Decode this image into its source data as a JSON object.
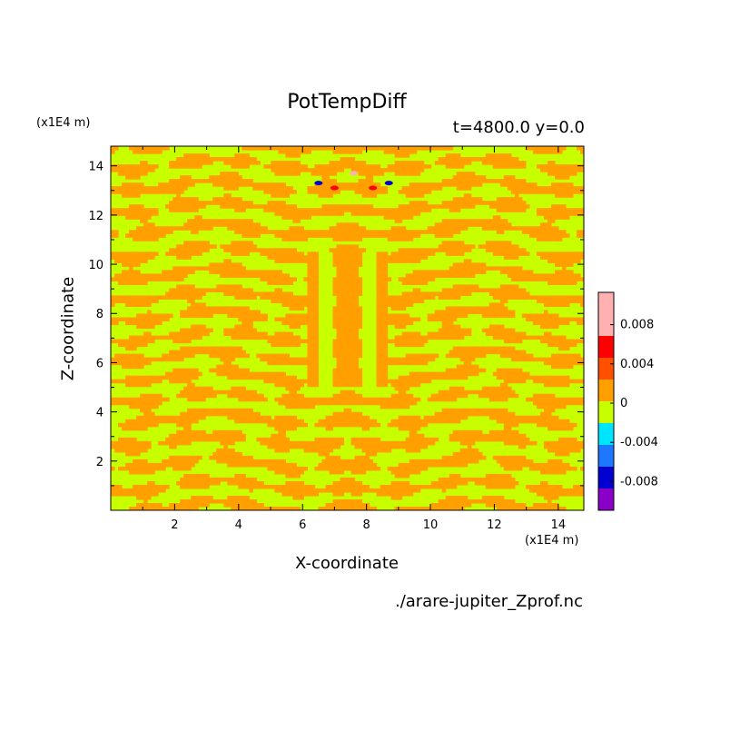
{
  "chart_data": {
    "type": "heatmap",
    "title": "PotTempDiff",
    "subtitle": "t=4800.0 y=0.0",
    "xlabel": "X-coordinate",
    "ylabel": "Z-coordinate",
    "x_unit": "(x1E4 m)",
    "z_unit": "(x1E4 m)",
    "xlim": [
      0,
      14.8
    ],
    "ylim": [
      0,
      14.8
    ],
    "x_ticks": [
      2,
      4,
      6,
      8,
      10,
      12,
      14
    ],
    "y_ticks": [
      2,
      4,
      6,
      8,
      10,
      12,
      14
    ],
    "x_tick_labels": [
      "2",
      "4",
      "6",
      "8",
      "10",
      "12",
      "14"
    ],
    "y_tick_labels": [
      "2",
      "4",
      "6",
      "8",
      "10",
      "12",
      "14"
    ],
    "colorbar": {
      "levels": [
        -0.01,
        -0.008,
        -0.006,
        -0.004,
        -0.002,
        0,
        0.002,
        0.004,
        0.006,
        0.008,
        0.01
      ],
      "colors": [
        "#8b00c8",
        "#0000d0",
        "#1e78ff",
        "#00e5ff",
        "#c8ff00",
        "#ffa000",
        "#ff5000",
        "#ff0000",
        "#ffb0b0",
        "#ffb0b0"
      ],
      "tick_values": [
        0.008,
        0.004,
        0,
        -0.004,
        -0.008
      ],
      "tick_labels": [
        "0.008",
        "0.004",
        "0",
        "-0.004",
        "-0.008"
      ]
    },
    "field_summary": {
      "dominant_values": [
        -0.001,
        0.001
      ],
      "anomalies": [
        {
          "x": 6.5,
          "z": 13.3,
          "value": -0.007
        },
        {
          "x": 7.6,
          "z": 13.7,
          "value": 0.007
        },
        {
          "x": 8.7,
          "z": 13.3,
          "value": -0.007
        },
        {
          "x": 7.0,
          "z": 13.1,
          "value": 0.004
        },
        {
          "x": 8.2,
          "z": 13.1,
          "value": 0.004
        }
      ]
    }
  },
  "source_file": "./arare-jupiter_Zprof.nc",
  "colors": {
    "background": "#ffffff",
    "axis": "#000000"
  }
}
